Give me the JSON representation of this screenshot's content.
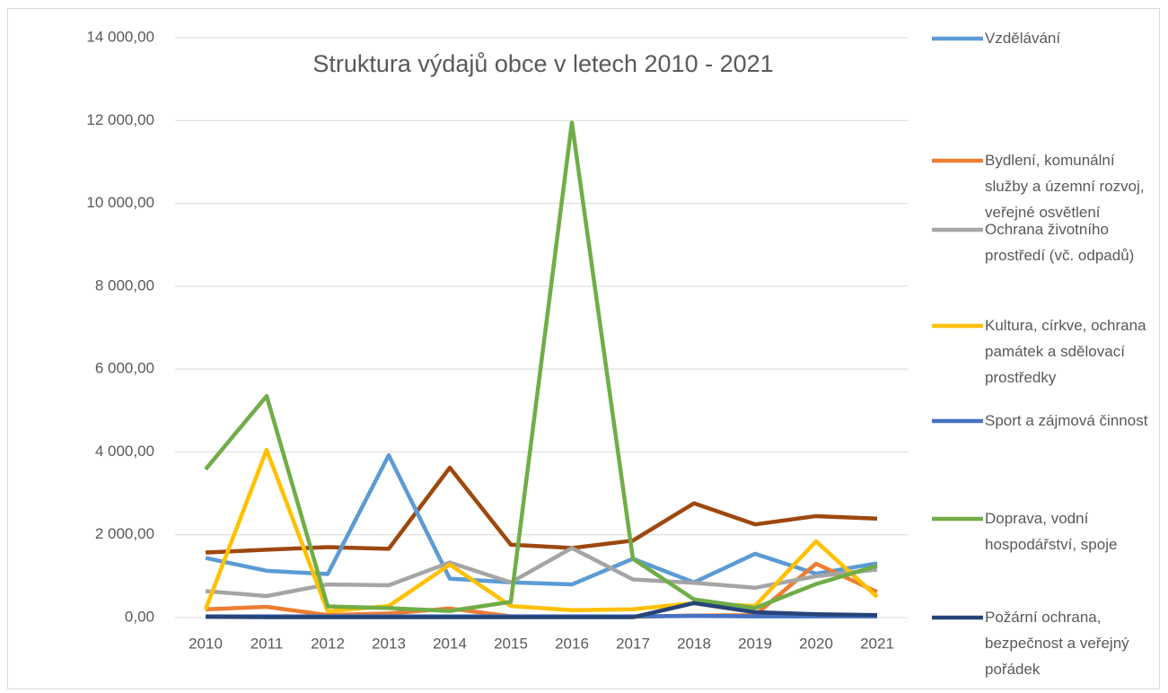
{
  "chart_data": {
    "type": "line",
    "title": "Struktura výdajů obce v letech 2010 - 2021",
    "categories": [
      "2010",
      "2011",
      "2012",
      "2013",
      "2014",
      "2015",
      "2016",
      "2017",
      "2018",
      "2019",
      "2020",
      "2021"
    ],
    "series": [
      {
        "name": "Vzdělávání",
        "color": "#5b9bd5",
        "values": [
          1440,
          1130,
          1050,
          3920,
          940,
          850,
          800,
          1420,
          850,
          1540,
          1060,
          1310
        ]
      },
      {
        "name": "Bydlení, komunální služby a územní rozvoj, veřejné osvětlení",
        "color": "#ed7d31",
        "values": [
          200,
          260,
          60,
          100,
          220,
          30,
          20,
          20,
          50,
          60,
          1300,
          620
        ]
      },
      {
        "name": "Ochrana životního prostředí (vč. odpadů)",
        "color": "#a5a5a5",
        "values": [
          640,
          520,
          800,
          780,
          1330,
          850,
          1680,
          920,
          840,
          720,
          1000,
          1160
        ]
      },
      {
        "name": "Kultura, církve, ochrana památek  a sdělovací prostředky",
        "color": "#ffc000",
        "values": [
          200,
          4050,
          150,
          280,
          1280,
          280,
          180,
          200,
          350,
          280,
          1840,
          500
        ]
      },
      {
        "name": "Sport a zájmová činnost",
        "color": "#4472c4",
        "values": [
          30,
          30,
          30,
          30,
          30,
          30,
          30,
          30,
          40,
          30,
          30,
          30
        ]
      },
      {
        "name": "Doprava, vodní hospodářství, spoje",
        "color": "#70ad47",
        "values": [
          3580,
          5350,
          270,
          230,
          160,
          380,
          11950,
          1420,
          440,
          230,
          810,
          1250
        ]
      },
      {
        "name": "Požární ochrana, bezpečnost a veřejný pořádek",
        "color": "#264478",
        "values": [
          20,
          10,
          10,
          10,
          10,
          10,
          10,
          10,
          350,
          130,
          80,
          60
        ]
      },
      {
        "color": "#9e480e",
        "values": [
          1570,
          1640,
          1700,
          1660,
          3620,
          1760,
          1680,
          1860,
          2760,
          2250,
          2450,
          2390
        ]
      }
    ],
    "ylim": [
      0,
      14000
    ],
    "yticks": [
      {
        "value": 0,
        "label": "0,00"
      },
      {
        "value": 2000,
        "label": "2 000,00"
      },
      {
        "value": 4000,
        "label": "4 000,00"
      },
      {
        "value": 6000,
        "label": "6 000,00"
      },
      {
        "value": 8000,
        "label": "8 000,00"
      },
      {
        "value": 10000,
        "label": "10 000,00"
      },
      {
        "value": 12000,
        "label": "12 000,00"
      },
      {
        "value": 14000,
        "label": "14 000,00"
      }
    ],
    "grid": true
  }
}
